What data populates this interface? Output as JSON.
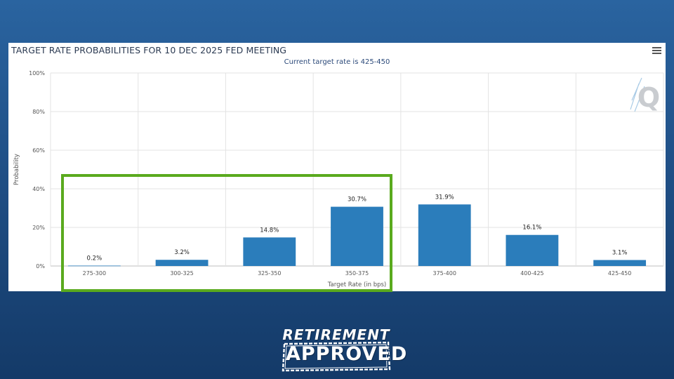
{
  "chart_data": {
    "type": "bar",
    "title": "TARGET RATE PROBABILITIES FOR 10 DEC 2025 FED MEETING",
    "subtitle": "Current target rate is 425-450",
    "xlabel": "Target Rate (in bps)",
    "ylabel": "Probability",
    "ylim": [
      0,
      100
    ],
    "yticks": [
      "0%",
      "20%",
      "40%",
      "60%",
      "80%",
      "100%"
    ],
    "ytick_values": [
      0,
      20,
      40,
      60,
      80,
      100
    ],
    "categories": [
      "275-300",
      "300-325",
      "325-350",
      "350-375",
      "375-400",
      "400-425",
      "425-450"
    ],
    "values": [
      0.2,
      3.2,
      14.8,
      30.7,
      31.9,
      16.1,
      3.1
    ],
    "data_labels": [
      "0.2%",
      "3.2%",
      "14.8%",
      "30.7%",
      "31.9%",
      "16.1%",
      "3.1%"
    ],
    "grid": true,
    "legend": "none",
    "bar_color": "#2b7dbb",
    "highlight": {
      "categories": [
        "275-300",
        "300-325",
        "325-350",
        "350-375"
      ],
      "color": "#5aaa1e"
    }
  },
  "watermark": {
    "letter": "Q",
    "icon": "quikstrike-q-logo-icon"
  },
  "menu": {
    "icon": "hamburger-menu-icon"
  },
  "badge": {
    "top": "RETIREMENT",
    "bottom": "APPROVED",
    "color": "#ffffff"
  },
  "colors": {
    "background_top": "#2a64a0",
    "background_bottom": "#143a68",
    "grid": "#e3e3e3",
    "axis_text": "#555555"
  }
}
